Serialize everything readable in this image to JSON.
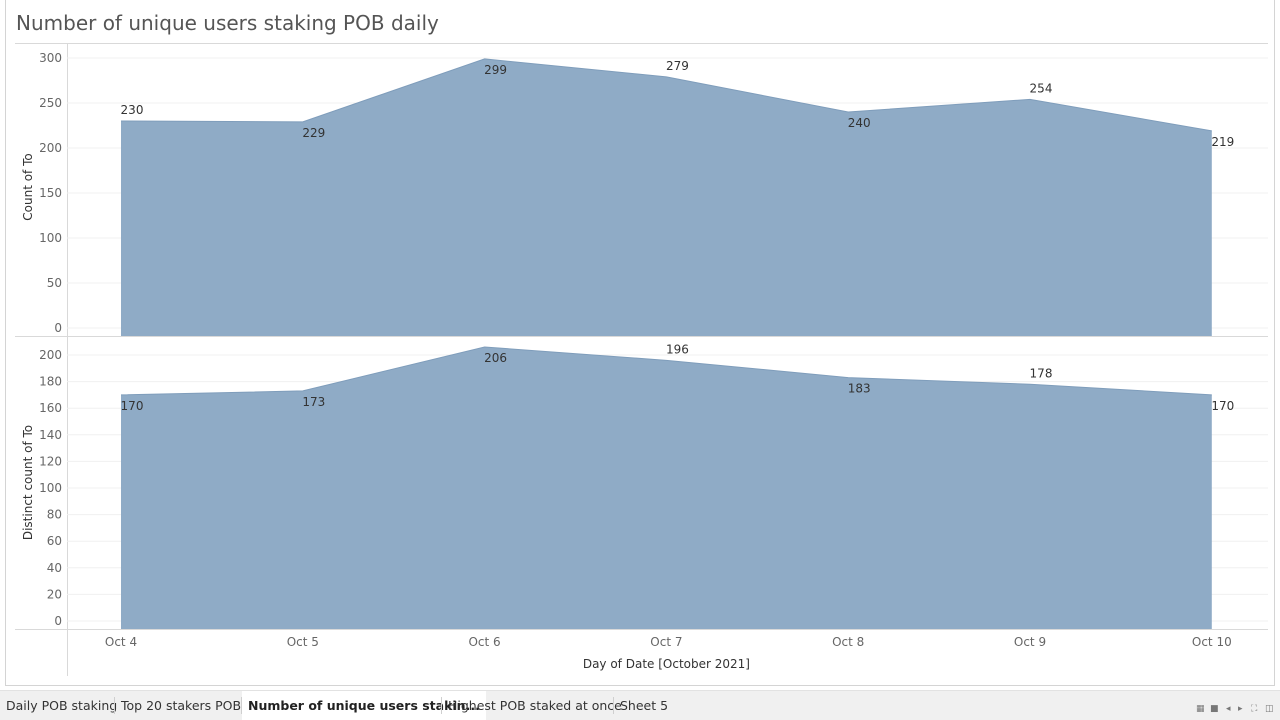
{
  "title": "Number of unique users staking POB daily",
  "tabs": [
    {
      "label": "Daily POB staking",
      "active": false
    },
    {
      "label": "Top 20 stakers POB",
      "active": false
    },
    {
      "label": "Number of unique users stakin...",
      "active": true
    },
    {
      "label": "Highest POB staked at once",
      "active": false
    },
    {
      "label": "Sheet 5",
      "active": false
    }
  ],
  "nav_icons": [
    "grid-view-icon",
    "single-view-icon",
    "prev-sheet-icon",
    "next-sheet-icon",
    "fullscreen-icon",
    "present-icon"
  ],
  "chart_data": [
    {
      "type": "area",
      "categories": [
        "Oct 4",
        "Oct 5",
        "Oct 6",
        "Oct 7",
        "Oct 8",
        "Oct 9",
        "Oct 10"
      ],
      "values": [
        230,
        229,
        299,
        279,
        240,
        254,
        219
      ],
      "ylabel": "Count of To",
      "ylim": [
        0,
        300
      ],
      "yticks": [
        0,
        50,
        100,
        150,
        200,
        250,
        300
      ],
      "label_position": [
        "above",
        "below",
        "below",
        "above",
        "below",
        "above",
        "below"
      ],
      "color": "#8FABC6",
      "grid": true
    },
    {
      "type": "area",
      "categories": [
        "Oct 4",
        "Oct 5",
        "Oct 6",
        "Oct 7",
        "Oct 8",
        "Oct 9",
        "Oct 10"
      ],
      "values": [
        170,
        173,
        206,
        196,
        183,
        178,
        170
      ],
      "ylabel": "Distinct count of To",
      "xlabel": "Day of Date [October 2021]",
      "ylim": [
        0,
        200
      ],
      "yticks": [
        0,
        20,
        40,
        60,
        80,
        100,
        120,
        140,
        160,
        180,
        200
      ],
      "label_position": [
        "below",
        "below",
        "below",
        "above",
        "below",
        "above",
        "below"
      ],
      "color": "#8FABC6",
      "grid": true
    }
  ]
}
